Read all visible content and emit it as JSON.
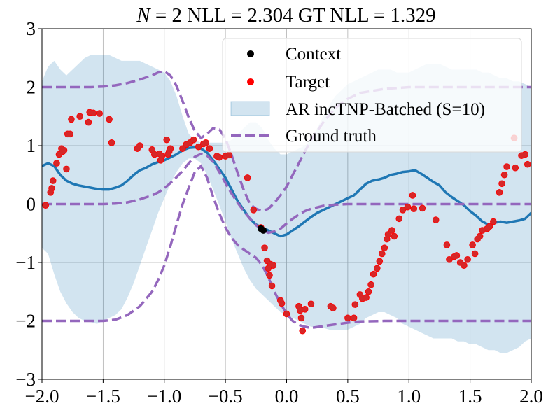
{
  "chart_data": {
    "type": "scatter",
    "title": "N = 2 NLL = 2.304 GT NLL = 1.329",
    "title_parts": {
      "n_symbol": "N",
      "rest": " = 2 NLL = 2.304 GT NLL = 1.329"
    },
    "xlabel": "",
    "ylabel": "",
    "xlim": [
      -2.0,
      2.0
    ],
    "ylim": [
      -3,
      3
    ],
    "x_ticks": [
      -2.0,
      -1.5,
      -1.0,
      -0.5,
      0.0,
      0.5,
      1.0,
      1.5,
      2.0
    ],
    "x_tick_labels": [
      "−2.0",
      "−1.5",
      "−1.0",
      "−0.5",
      "0.0",
      "0.5",
      "1.0",
      "1.5",
      "2.0"
    ],
    "y_ticks": [
      -3,
      -2,
      -1,
      0,
      1,
      2,
      3
    ],
    "y_tick_labels": [
      "−3",
      "−2",
      "−1",
      "0",
      "1",
      "2",
      "3"
    ],
    "grid": true,
    "legend_position": "top-right",
    "legend": [
      "Context",
      "Target",
      "AR incTNP-Batched (S=10)",
      "Ground truth"
    ],
    "colors": {
      "context": "#000000",
      "target": "#ff0000",
      "target_overlay": "#d62728",
      "mean": "#1f77b4",
      "band": "#1f77b4",
      "ground_truth": "#9467bd",
      "grid": "#b0b0b0"
    },
    "series": [
      {
        "name": "Context",
        "kind": "scatter",
        "points": [
          [
            -0.21,
            -0.42
          ],
          [
            -0.19,
            -0.45
          ]
        ]
      },
      {
        "name": "Target",
        "kind": "scatter",
        "points": [
          [
            -1.97,
            -0.02
          ],
          [
            -1.93,
            0.2
          ],
          [
            -1.92,
            0.27
          ],
          [
            -1.91,
            0.4
          ],
          [
            -1.88,
            0.7
          ],
          [
            -1.86,
            0.85
          ],
          [
            -1.84,
            0.95
          ],
          [
            -1.83,
            0.9
          ],
          [
            -1.82,
            0.92
          ],
          [
            -1.8,
            0.6
          ],
          [
            -1.79,
            1.2
          ],
          [
            -1.77,
            1.2
          ],
          [
            -1.76,
            1.45
          ],
          [
            -1.69,
            1.5
          ],
          [
            -1.62,
            1.4
          ],
          [
            -1.61,
            1.57
          ],
          [
            -1.58,
            1.56
          ],
          [
            -1.53,
            1.55
          ],
          [
            -1.45,
            1.45
          ],
          [
            -1.43,
            1.05
          ],
          [
            -1.22,
            0.95
          ],
          [
            -1.2,
            1.0
          ],
          [
            -1.1,
            0.93
          ],
          [
            -1.08,
            0.85
          ],
          [
            -1.04,
            0.86
          ],
          [
            -1.03,
            0.75
          ],
          [
            -1.02,
            0.82
          ],
          [
            -0.98,
            1.1
          ],
          [
            -0.97,
            0.85
          ],
          [
            -0.96,
            0.9
          ],
          [
            -0.95,
            0.95
          ],
          [
            -0.85,
            0.95
          ],
          [
            -0.82,
            1.02
          ],
          [
            -0.79,
            1.05
          ],
          [
            -0.76,
            1.1
          ],
          [
            -0.72,
            0.98
          ],
          [
            -0.68,
            1.03
          ],
          [
            -0.66,
            1.05
          ],
          [
            -0.63,
            0.95
          ],
          [
            -0.57,
            0.82
          ],
          [
            -0.55,
            0.8
          ],
          [
            -0.5,
            0.82
          ],
          [
            -0.47,
            0.84
          ],
          [
            -0.32,
            0.45
          ],
          [
            -0.27,
            -0.1
          ],
          [
            -0.21,
            -0.4
          ],
          [
            -0.18,
            -0.75
          ],
          [
            -0.16,
            -0.97
          ],
          [
            -0.15,
            -1.1
          ],
          [
            -0.14,
            -1.22
          ],
          [
            -0.13,
            -1.03
          ],
          [
            -0.12,
            -1.4
          ],
          [
            -0.11,
            -1.05
          ],
          [
            -0.05,
            -1.65
          ],
          [
            -0.04,
            -1.7
          ],
          [
            0.0,
            -1.88
          ],
          [
            0.1,
            -1.75
          ],
          [
            0.11,
            -1.82
          ],
          [
            0.12,
            -1.95
          ],
          [
            0.13,
            -2.17
          ],
          [
            0.15,
            -1.8
          ],
          [
            0.2,
            -1.71
          ],
          [
            0.36,
            -1.75
          ],
          [
            0.38,
            -1.78
          ],
          [
            0.5,
            -1.95
          ],
          [
            0.55,
            -1.95
          ],
          [
            0.56,
            -1.72
          ],
          [
            0.6,
            -1.55
          ],
          [
            0.62,
            -1.62
          ],
          [
            0.65,
            -1.6
          ],
          [
            0.67,
            -1.5
          ],
          [
            0.69,
            -1.38
          ],
          [
            0.71,
            -1.2
          ],
          [
            0.74,
            -1.1
          ],
          [
            0.76,
            -0.98
          ],
          [
            0.78,
            -0.85
          ],
          [
            0.8,
            -0.75
          ],
          [
            0.82,
            -0.6
          ],
          [
            0.83,
            -0.52
          ],
          [
            0.86,
            -0.45
          ],
          [
            0.88,
            -0.55
          ],
          [
            0.92,
            -0.25
          ],
          [
            0.95,
            -0.1
          ],
          [
            0.99,
            -0.05
          ],
          [
            1.03,
            0.15
          ],
          [
            1.04,
            -0.08
          ],
          [
            1.11,
            -0.07
          ],
          [
            1.22,
            -0.27
          ],
          [
            1.31,
            -0.7
          ],
          [
            1.33,
            -0.95
          ],
          [
            1.37,
            -0.9
          ],
          [
            1.39,
            -0.88
          ],
          [
            1.42,
            -1.0
          ],
          [
            1.45,
            -1.05
          ],
          [
            1.48,
            -0.95
          ],
          [
            1.52,
            -0.7
          ],
          [
            1.54,
            -0.85
          ],
          [
            1.56,
            -0.6
          ],
          [
            1.58,
            -0.55
          ],
          [
            1.6,
            -0.45
          ],
          [
            1.64,
            -0.42
          ],
          [
            1.66,
            -0.38
          ],
          [
            1.69,
            -0.3
          ],
          [
            1.74,
            0.2
          ],
          [
            1.76,
            0.35
          ],
          [
            1.78,
            0.5
          ],
          [
            1.8,
            0.64
          ],
          [
            1.86,
            1.13
          ],
          [
            1.87,
            0.62
          ],
          [
            1.92,
            0.83
          ],
          [
            1.95,
            0.85
          ],
          [
            1.97,
            0.68
          ]
        ]
      },
      {
        "name": "AR incTNP-Batched (S=10)",
        "kind": "band",
        "x": [
          -2.0,
          -1.95,
          -1.9,
          -1.85,
          -1.8,
          -1.75,
          -1.7,
          -1.65,
          -1.6,
          -1.55,
          -1.5,
          -1.45,
          -1.4,
          -1.35,
          -1.3,
          -1.25,
          -1.2,
          -1.15,
          -1.1,
          -1.05,
          -1.0,
          -0.95,
          -0.9,
          -0.85,
          -0.8,
          -0.75,
          -0.7,
          -0.65,
          -0.6,
          -0.55,
          -0.5,
          -0.45,
          -0.4,
          -0.35,
          -0.3,
          -0.25,
          -0.2,
          -0.15,
          -0.1,
          -0.05,
          0.0,
          0.05,
          0.1,
          0.15,
          0.2,
          0.25,
          0.3,
          0.35,
          0.4,
          0.45,
          0.5,
          0.55,
          0.6,
          0.65,
          0.7,
          0.75,
          0.8,
          0.85,
          0.9,
          0.95,
          1.0,
          1.05,
          1.1,
          1.15,
          1.2,
          1.25,
          1.3,
          1.35,
          1.4,
          1.45,
          1.5,
          1.55,
          1.6,
          1.65,
          1.7,
          1.75,
          1.8,
          1.85,
          1.9,
          1.95,
          2.0
        ],
        "mean": [
          0.65,
          0.7,
          0.65,
          0.5,
          0.4,
          0.35,
          0.32,
          0.3,
          0.28,
          0.26,
          0.25,
          0.25,
          0.28,
          0.32,
          0.4,
          0.5,
          0.58,
          0.62,
          0.68,
          0.72,
          0.75,
          0.8,
          0.85,
          0.92,
          0.96,
          0.97,
          0.95,
          0.88,
          0.75,
          0.6,
          0.45,
          0.25,
          0.05,
          -0.1,
          -0.25,
          -0.35,
          -0.4,
          -0.45,
          -0.5,
          -0.55,
          -0.52,
          -0.45,
          -0.38,
          -0.3,
          -0.22,
          -0.15,
          -0.1,
          -0.05,
          0.0,
          0.05,
          0.1,
          0.15,
          0.25,
          0.35,
          0.4,
          0.42,
          0.45,
          0.5,
          0.52,
          0.55,
          0.56,
          0.58,
          0.52,
          0.45,
          0.38,
          0.32,
          0.2,
          0.12,
          0.05,
          -0.02,
          -0.12,
          -0.2,
          -0.3,
          -0.35,
          -0.32,
          -0.3,
          -0.32,
          -0.3,
          -0.28,
          -0.25,
          -0.15
        ],
        "lower": [
          -0.75,
          -0.85,
          -1.2,
          -1.5,
          -1.7,
          -1.85,
          -1.95,
          -2.0,
          -2.02,
          -2.05,
          -2.0,
          -1.95,
          -1.9,
          -1.8,
          -1.6,
          -1.35,
          -1.05,
          -0.75,
          -0.45,
          -0.15,
          0.1,
          0.35,
          0.55,
          0.7,
          0.78,
          0.78,
          0.7,
          0.5,
          0.25,
          -0.02,
          -0.3,
          -0.6,
          -0.85,
          -1.1,
          -1.3,
          -1.45,
          -1.55,
          -1.65,
          -1.75,
          -1.85,
          -1.9,
          -1.95,
          -2.0,
          -2.05,
          -2.1,
          -2.1,
          -2.12,
          -2.15,
          -2.15,
          -2.15,
          -2.15,
          -2.1,
          -2.05,
          -1.95,
          -1.9,
          -1.85,
          -1.85,
          -1.9,
          -1.95,
          -2.05,
          -2.1,
          -2.15,
          -2.2,
          -2.25,
          -2.3,
          -2.3,
          -2.3,
          -2.3,
          -2.35,
          -2.35,
          -2.4,
          -2.4,
          -2.45,
          -2.5,
          -2.5,
          -2.55,
          -2.55,
          -2.5,
          -2.45,
          -2.35,
          -2.3
        ],
        "upper": [
          2.1,
          2.35,
          2.45,
          2.3,
          2.2,
          2.3,
          2.4,
          2.5,
          2.55,
          2.55,
          2.55,
          2.55,
          2.5,
          2.45,
          2.45,
          2.45,
          2.45,
          2.4,
          2.35,
          2.3,
          2.25,
          2.1,
          1.85,
          1.5,
          1.2,
          1.1,
          1.05,
          1.05,
          1.05,
          1.05,
          1.05,
          1.1,
          1.2,
          1.3,
          1.4,
          1.4,
          1.3,
          1.1,
          0.95,
          0.85,
          0.85,
          0.9,
          0.95,
          1.0,
          1.1,
          1.3,
          1.5,
          1.7,
          1.85,
          1.95,
          2.05,
          2.1,
          2.15,
          2.2,
          2.25,
          2.3,
          2.3,
          2.3,
          2.25,
          2.25,
          2.25,
          2.3,
          2.35,
          2.4,
          2.4,
          2.4,
          2.35,
          2.3,
          2.3,
          2.3,
          2.3,
          2.3,
          2.25,
          2.25,
          2.2,
          2.15,
          2.15,
          2.1,
          2.1,
          2.05,
          2.0
        ]
      },
      {
        "name": "Ground truth",
        "kind": "dashed_lines",
        "x": [
          -2.0,
          -1.9,
          -1.8,
          -1.7,
          -1.6,
          -1.5,
          -1.4,
          -1.3,
          -1.2,
          -1.1,
          -1.05,
          -1.0,
          -0.95,
          -0.9,
          -0.85,
          -0.8,
          -0.75,
          -0.7,
          -0.65,
          -0.6,
          -0.55,
          -0.5,
          -0.45,
          -0.4,
          -0.35,
          -0.3,
          -0.25,
          -0.2,
          -0.15,
          -0.1,
          -0.05,
          0.0,
          0.05,
          0.1,
          0.15,
          0.2,
          0.3,
          0.4,
          0.5,
          0.6,
          0.8,
          1.0,
          1.2,
          1.4,
          1.6,
          1.8,
          2.0
        ],
        "mean": [
          0.0,
          0.0,
          0.0,
          0.0,
          0.0,
          0.0,
          0.01,
          0.03,
          0.08,
          0.15,
          0.2,
          0.27,
          0.36,
          0.46,
          0.57,
          0.7,
          0.81,
          0.86,
          0.83,
          0.72,
          0.55,
          0.36,
          0.18,
          0.02,
          -0.12,
          -0.25,
          -0.36,
          -0.44,
          -0.49,
          -0.47,
          -0.42,
          -0.33,
          -0.25,
          -0.18,
          -0.12,
          -0.08,
          -0.03,
          -0.01,
          0.0,
          0.0,
          0.0,
          0.0,
          0.0,
          0.0,
          0.0,
          0.0,
          0.0
        ],
        "upper": [
          2.0,
          2.0,
          2.0,
          2.0,
          2.0,
          2.01,
          2.03,
          2.07,
          2.13,
          2.2,
          2.25,
          2.27,
          2.2,
          2.02,
          1.76,
          1.48,
          1.25,
          1.13,
          1.2,
          1.3,
          1.28,
          1.12,
          0.84,
          0.53,
          0.24,
          0.0,
          -0.08,
          -0.12,
          -0.08,
          0.02,
          0.15,
          0.3,
          0.5,
          0.7,
          0.9,
          1.1,
          1.4,
          1.65,
          1.8,
          1.9,
          1.97,
          2.0,
          2.0,
          2.0,
          2.0,
          2.0,
          2.0
        ],
        "lower": [
          -2.0,
          -2.0,
          -2.0,
          -2.0,
          -2.0,
          -2.0,
          -1.98,
          -1.9,
          -1.75,
          -1.5,
          -1.3,
          -1.05,
          -0.72,
          -0.35,
          0.0,
          0.28,
          0.55,
          0.65,
          0.45,
          0.12,
          -0.16,
          -0.4,
          -0.58,
          -0.7,
          -0.78,
          -0.85,
          -0.92,
          -1.05,
          -1.25,
          -1.5,
          -1.7,
          -1.88,
          -2.0,
          -2.07,
          -2.1,
          -2.12,
          -2.09,
          -2.06,
          -2.03,
          -2.01,
          -2.0,
          -2.0,
          -2.0,
          -2.0,
          -2.0,
          -2.0,
          -2.0
        ]
      }
    ]
  }
}
